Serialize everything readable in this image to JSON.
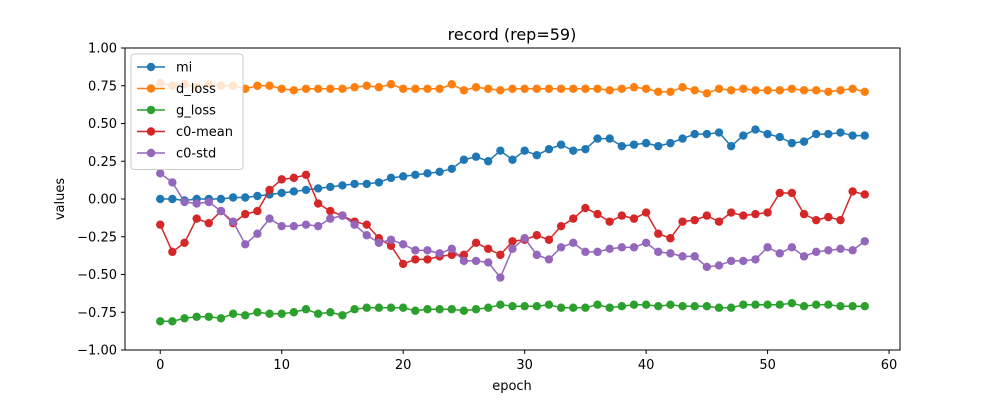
{
  "chart_data": {
    "type": "line",
    "title": "record (rep=59)",
    "xlabel": "epoch",
    "ylabel": "values",
    "xlim": [
      -2.9,
      60.9
    ],
    "ylim": [
      -1.0,
      1.0
    ],
    "xticks": [
      0,
      10,
      20,
      30,
      40,
      50,
      60
    ],
    "yticks": [
      -1.0,
      -0.75,
      -0.5,
      -0.25,
      0.0,
      0.25,
      0.5,
      0.75,
      1.0
    ],
    "ytick_labels": [
      "−1.00",
      "−0.75",
      "−0.50",
      "−0.25",
      "0.00",
      "0.25",
      "0.50",
      "0.75",
      "1.00"
    ],
    "grid": false,
    "legend_position": "top-left",
    "x": [
      0,
      1,
      2,
      3,
      4,
      5,
      6,
      7,
      8,
      9,
      10,
      11,
      12,
      13,
      14,
      15,
      16,
      17,
      18,
      19,
      20,
      21,
      22,
      23,
      24,
      25,
      26,
      27,
      28,
      29,
      30,
      31,
      32,
      33,
      34,
      35,
      36,
      37,
      38,
      39,
      40,
      41,
      42,
      43,
      44,
      45,
      46,
      47,
      48,
      49,
      50,
      51,
      52,
      53,
      54,
      55,
      56,
      57,
      58
    ],
    "series": [
      {
        "name": "mi",
        "color": "#1f77b4",
        "values": [
          0.0,
          0.0,
          -0.01,
          0.0,
          0.0,
          0.0,
          0.01,
          0.01,
          0.02,
          0.03,
          0.04,
          0.05,
          0.06,
          0.07,
          0.08,
          0.09,
          0.1,
          0.1,
          0.11,
          0.14,
          0.15,
          0.16,
          0.17,
          0.18,
          0.2,
          0.26,
          0.28,
          0.25,
          0.32,
          0.26,
          0.32,
          0.29,
          0.33,
          0.36,
          0.32,
          0.33,
          0.4,
          0.4,
          0.35,
          0.36,
          0.37,
          0.35,
          0.37,
          0.4,
          0.43,
          0.43,
          0.44,
          0.35,
          0.42,
          0.46,
          0.43,
          0.41,
          0.37,
          0.38,
          0.43,
          0.43,
          0.44,
          0.42,
          0.42
        ]
      },
      {
        "name": "d_loss",
        "color": "#ff7f0e",
        "values": [
          0.77,
          0.75,
          0.76,
          0.74,
          0.76,
          0.75,
          0.75,
          0.73,
          0.75,
          0.75,
          0.73,
          0.72,
          0.73,
          0.73,
          0.73,
          0.73,
          0.74,
          0.75,
          0.74,
          0.76,
          0.73,
          0.73,
          0.73,
          0.73,
          0.76,
          0.72,
          0.74,
          0.73,
          0.72,
          0.73,
          0.73,
          0.73,
          0.73,
          0.73,
          0.73,
          0.73,
          0.73,
          0.72,
          0.73,
          0.74,
          0.73,
          0.71,
          0.71,
          0.74,
          0.72,
          0.7,
          0.73,
          0.72,
          0.73,
          0.72,
          0.72,
          0.72,
          0.73,
          0.72,
          0.72,
          0.71,
          0.72,
          0.73,
          0.71
        ]
      },
      {
        "name": "g_loss",
        "color": "#2ca02c",
        "values": [
          -0.81,
          -0.81,
          -0.79,
          -0.78,
          -0.78,
          -0.79,
          -0.76,
          -0.77,
          -0.75,
          -0.76,
          -0.76,
          -0.75,
          -0.73,
          -0.76,
          -0.75,
          -0.77,
          -0.73,
          -0.72,
          -0.72,
          -0.72,
          -0.72,
          -0.74,
          -0.73,
          -0.73,
          -0.73,
          -0.74,
          -0.73,
          -0.72,
          -0.7,
          -0.71,
          -0.71,
          -0.71,
          -0.7,
          -0.72,
          -0.72,
          -0.72,
          -0.7,
          -0.72,
          -0.71,
          -0.7,
          -0.7,
          -0.71,
          -0.7,
          -0.71,
          -0.71,
          -0.71,
          -0.72,
          -0.72,
          -0.7,
          -0.7,
          -0.7,
          -0.7,
          -0.69,
          -0.71,
          -0.7,
          -0.7,
          -0.71,
          -0.71,
          -0.71
        ]
      },
      {
        "name": "c0-mean",
        "color": "#d62728",
        "values": [
          -0.17,
          -0.35,
          -0.29,
          -0.13,
          -0.16,
          -0.08,
          -0.16,
          -0.1,
          -0.08,
          0.06,
          0.13,
          0.14,
          0.16,
          -0.03,
          -0.08,
          -0.11,
          -0.15,
          -0.17,
          -0.26,
          -0.31,
          -0.43,
          -0.4,
          -0.4,
          -0.38,
          -0.37,
          -0.37,
          -0.29,
          -0.33,
          -0.37,
          -0.28,
          -0.27,
          -0.24,
          -0.27,
          -0.18,
          -0.13,
          -0.06,
          -0.1,
          -0.15,
          -0.11,
          -0.13,
          -0.09,
          -0.23,
          -0.26,
          -0.15,
          -0.14,
          -0.11,
          -0.15,
          -0.09,
          -0.11,
          -0.1,
          -0.09,
          0.04,
          0.04,
          -0.1,
          -0.14,
          -0.12,
          -0.14,
          0.05,
          0.03
        ]
      },
      {
        "name": "c0-std",
        "color": "#9467bd",
        "values": [
          0.17,
          0.11,
          -0.02,
          -0.03,
          -0.02,
          -0.08,
          -0.15,
          -0.3,
          -0.23,
          -0.13,
          -0.18,
          -0.18,
          -0.17,
          -0.18,
          -0.13,
          -0.11,
          -0.17,
          -0.24,
          -0.29,
          -0.27,
          -0.3,
          -0.34,
          -0.34,
          -0.36,
          -0.33,
          -0.41,
          -0.41,
          -0.42,
          -0.52,
          -0.33,
          -0.26,
          -0.37,
          -0.4,
          -0.32,
          -0.29,
          -0.35,
          -0.35,
          -0.33,
          -0.32,
          -0.32,
          -0.29,
          -0.35,
          -0.36,
          -0.38,
          -0.38,
          -0.45,
          -0.44,
          -0.41,
          -0.41,
          -0.4,
          -0.32,
          -0.36,
          -0.32,
          -0.38,
          -0.35,
          -0.34,
          -0.33,
          -0.34,
          -0.28
        ]
      }
    ]
  }
}
